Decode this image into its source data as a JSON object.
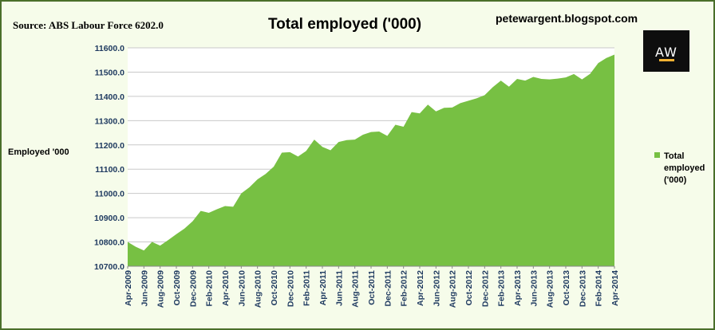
{
  "header": {
    "source": "Source: ABS Labour Force 6202.0",
    "blog": "petewargent.blogspot.com",
    "logo_text": "AW"
  },
  "chart_data": {
    "type": "area",
    "title": "Total employed ('000)",
    "ylabel": "Employed '000",
    "xlabel": "",
    "ylim": [
      10700,
      11600
    ],
    "yticks": [
      "10700.0",
      "10800.0",
      "10900.0",
      "11000.0",
      "11100.0",
      "11200.0",
      "11300.0",
      "11400.0",
      "11500.0",
      "11600.0"
    ],
    "grid": true,
    "legend": "right",
    "xtick_labels": [
      "Apr-2009",
      "Jun-2009",
      "Aug-2009",
      "Oct-2009",
      "Dec-2009",
      "Feb-2010",
      "Apr-2010",
      "Jun-2010",
      "Aug-2010",
      "Oct-2010",
      "Dec-2010",
      "Feb-2011",
      "Apr-2011",
      "Jun-2011",
      "Aug-2011",
      "Oct-2011",
      "Dec-2011",
      "Feb-2012",
      "Apr-2012",
      "Jun-2012",
      "Aug-2012",
      "Oct-2012",
      "Dec-2012",
      "Feb-2013",
      "Apr-2013",
      "Jun-2013",
      "Aug-2013",
      "Oct-2013",
      "Dec-2013",
      "Feb-2014",
      "Apr-2014"
    ],
    "x": [
      "Apr-2009",
      "May-2009",
      "Jun-2009",
      "Jul-2009",
      "Aug-2009",
      "Sep-2009",
      "Oct-2009",
      "Nov-2009",
      "Dec-2009",
      "Jan-2010",
      "Feb-2010",
      "Mar-2010",
      "Apr-2010",
      "May-2010",
      "Jun-2010",
      "Jul-2010",
      "Aug-2010",
      "Sep-2010",
      "Oct-2010",
      "Nov-2010",
      "Dec-2010",
      "Jan-2011",
      "Feb-2011",
      "Mar-2011",
      "Apr-2011",
      "May-2011",
      "Jun-2011",
      "Jul-2011",
      "Aug-2011",
      "Sep-2011",
      "Oct-2011",
      "Nov-2011",
      "Dec-2011",
      "Jan-2012",
      "Feb-2012",
      "Mar-2012",
      "Apr-2012",
      "May-2012",
      "Jun-2012",
      "Jul-2012",
      "Aug-2012",
      "Sep-2012",
      "Oct-2012",
      "Nov-2012",
      "Dec-2012",
      "Jan-2013",
      "Feb-2013",
      "Mar-2013",
      "Apr-2013",
      "May-2013",
      "Jun-2013",
      "Jul-2013",
      "Aug-2013",
      "Sep-2013",
      "Oct-2013",
      "Nov-2013",
      "Dec-2013",
      "Jan-2014",
      "Feb-2014",
      "Mar-2014",
      "Apr-2014"
    ],
    "series": [
      {
        "name": "Total employed ('000)",
        "color": "#77c043",
        "values": [
          10800,
          10780,
          10765,
          10800,
          10785,
          10808,
          10832,
          10855,
          10885,
          10928,
          10920,
          10935,
          10948,
          10945,
          11000,
          11025,
          11058,
          11080,
          11110,
          11168,
          11170,
          11152,
          11175,
          11222,
          11192,
          11178,
          11212,
          11220,
          11222,
          11242,
          11253,
          11255,
          11237,
          11283,
          11275,
          11335,
          11330,
          11366,
          11338,
          11353,
          11354,
          11372,
          11382,
          11392,
          11405,
          11438,
          11465,
          11440,
          11472,
          11465,
          11480,
          11472,
          11470,
          11473,
          11478,
          11492,
          11470,
          11493,
          11537,
          11558,
          11572
        ]
      }
    ]
  }
}
